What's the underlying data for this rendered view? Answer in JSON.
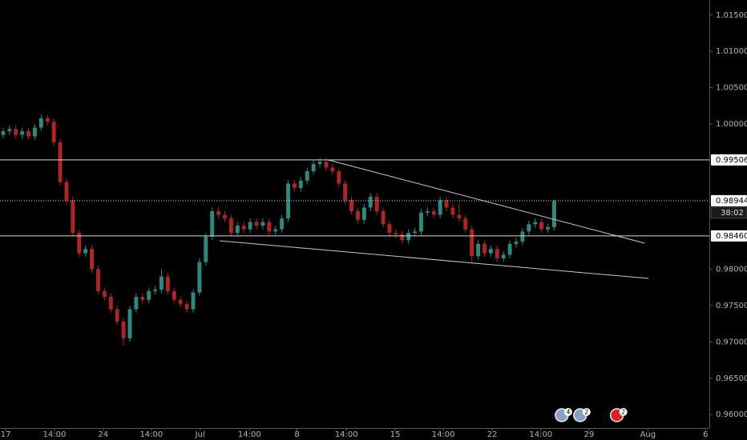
{
  "chart_data": {
    "type": "candlestick",
    "up_color": "#2a8c80",
    "down_color": "#b02424",
    "background": "#000000",
    "xlim": [
      -0.5,
      111.5
    ],
    "xticks": [
      {
        "value": 0.4,
        "label": "17"
      },
      {
        "value": 8.1,
        "label": "14:00"
      },
      {
        "value": 15.8,
        "label": "24"
      },
      {
        "value": 23.4,
        "label": "14:00"
      },
      {
        "value": 31.1,
        "label": "Jul"
      },
      {
        "value": 38.9,
        "label": "14:00"
      },
      {
        "value": 46.4,
        "label": "8"
      },
      {
        "value": 54.2,
        "label": "14:00"
      },
      {
        "value": 61.9,
        "label": "15"
      },
      {
        "value": 69.5,
        "label": "14:00"
      },
      {
        "value": 77.2,
        "label": "22"
      },
      {
        "value": 84.9,
        "label": "14:00"
      },
      {
        "value": 92.5,
        "label": "29"
      },
      {
        "value": 101.8,
        "label": "Aug"
      },
      {
        "value": 110.9,
        "label": "6"
      }
    ],
    "ylim": [
      0.95815,
      1.01707
    ],
    "yticks": [
      {
        "value": 1.015,
        "label": "1.01500"
      },
      {
        "value": 1.01,
        "label": "1.01000"
      },
      {
        "value": 1.005,
        "label": "1.00500"
      },
      {
        "value": 1.0,
        "label": "1.00000"
      },
      {
        "value": 0.98,
        "label": "0.98000"
      },
      {
        "value": 0.975,
        "label": "0.97500"
      },
      {
        "value": 0.97,
        "label": "0.97000"
      },
      {
        "value": 0.965,
        "label": "0.96500"
      },
      {
        "value": 0.96,
        "label": "0.96000"
      }
    ],
    "price_lines": [
      {
        "value": 0.99506,
        "label": "0.99506",
        "style": "solid"
      },
      {
        "value": 0.9846,
        "label": "0.98460",
        "style": "solid"
      },
      {
        "value": 0.98944,
        "label": "0.98944",
        "style": "dotted"
      }
    ],
    "countdown": "38:02",
    "trendlines": [
      [
        [
          51.3,
          0.99506
        ],
        [
          101.3,
          0.98359
        ]
      ],
      [
        [
          34.2,
          0.98392
        ],
        [
          101.9,
          0.97874
        ]
      ]
    ],
    "events": [
      {
        "x": 88.2,
        "label": "4"
      },
      {
        "x": 91.1,
        "label": "2"
      },
      {
        "x": 96.9,
        "label": "2"
      }
    ],
    "candles": [
      [
        0.9985,
        0.9995,
        0.998,
        0.999
      ],
      [
        0.999,
        0.9998,
        0.9985,
        0.9993
      ],
      [
        0.9993,
        0.9998,
        0.998,
        0.9985
      ],
      [
        0.9985,
        0.9995,
        0.998,
        0.999
      ],
      [
        0.999,
        0.9995,
        0.9978,
        0.9983
      ],
      [
        0.9983,
        1.0,
        0.9978,
        0.9995
      ],
      [
        0.9995,
        1.0013,
        0.999,
        1.0008
      ],
      [
        1.0008,
        1.0013,
        0.9998,
        1.0003
      ],
      [
        1.0003,
        1.0008,
        0.997,
        0.9975
      ],
      [
        0.9975,
        0.998,
        0.9915,
        0.992
      ],
      [
        0.992,
        0.9925,
        0.989,
        0.9895
      ],
      [
        0.9895,
        0.99,
        0.9845,
        0.985
      ],
      [
        0.985,
        0.9855,
        0.9817,
        0.9822
      ],
      [
        0.9822,
        0.9833,
        0.9817,
        0.9828
      ],
      [
        0.9828,
        0.9833,
        0.9795,
        0.98
      ],
      [
        0.98,
        0.9805,
        0.9765,
        0.977
      ],
      [
        0.977,
        0.9775,
        0.9757,
        0.9762
      ],
      [
        0.9762,
        0.9767,
        0.974,
        0.9745
      ],
      [
        0.9745,
        0.975,
        0.9723,
        0.9728
      ],
      [
        0.9728,
        0.9733,
        0.9695,
        0.9705
      ],
      [
        0.9705,
        0.975,
        0.97,
        0.9745
      ],
      [
        0.9745,
        0.9767,
        0.974,
        0.9762
      ],
      [
        0.9762,
        0.9767,
        0.9753,
        0.9758
      ],
      [
        0.9758,
        0.9775,
        0.9753,
        0.977
      ],
      [
        0.977,
        0.9777,
        0.9765,
        0.9772
      ],
      [
        0.9772,
        0.98,
        0.9767,
        0.979
      ],
      [
        0.979,
        0.9795,
        0.9765,
        0.977
      ],
      [
        0.977,
        0.9775,
        0.9753,
        0.9758
      ],
      [
        0.9758,
        0.9763,
        0.9747,
        0.9752
      ],
      [
        0.9752,
        0.9757,
        0.974,
        0.9745
      ],
      [
        0.9745,
        0.9773,
        0.974,
        0.9768
      ],
      [
        0.9768,
        0.9815,
        0.9763,
        0.981
      ],
      [
        0.981,
        0.985,
        0.9805,
        0.9845
      ],
      [
        0.9845,
        0.9885,
        0.984,
        0.988
      ],
      [
        0.988,
        0.9885,
        0.987,
        0.9875
      ],
      [
        0.9875,
        0.988,
        0.9865,
        0.987
      ],
      [
        0.987,
        0.9875,
        0.9845,
        0.985
      ],
      [
        0.985,
        0.9865,
        0.9845,
        0.986
      ],
      [
        0.986,
        0.9865,
        0.985,
        0.9855
      ],
      [
        0.9855,
        0.987,
        0.985,
        0.9865
      ],
      [
        0.9865,
        0.987,
        0.9855,
        0.986
      ],
      [
        0.986,
        0.987,
        0.9855,
        0.9865
      ],
      [
        0.9865,
        0.987,
        0.9847,
        0.9852
      ],
      [
        0.9852,
        0.986,
        0.9847,
        0.9855
      ],
      [
        0.9855,
        0.9875,
        0.985,
        0.987
      ],
      [
        0.987,
        0.9923,
        0.9865,
        0.9918
      ],
      [
        0.9918,
        0.9923,
        0.9907,
        0.9912
      ],
      [
        0.9912,
        0.9927,
        0.9907,
        0.9922
      ],
      [
        0.9922,
        0.994,
        0.9917,
        0.9935
      ],
      [
        0.9935,
        0.995,
        0.993,
        0.9945
      ],
      [
        0.9945,
        0.9953,
        0.994,
        0.9948
      ],
      [
        0.9948,
        0.9953,
        0.9935,
        0.994
      ],
      [
        0.994,
        0.9945,
        0.993,
        0.9935
      ],
      [
        0.9935,
        0.994,
        0.9913,
        0.9918
      ],
      [
        0.9918,
        0.9923,
        0.989,
        0.9895
      ],
      [
        0.9895,
        0.99,
        0.9875,
        0.988
      ],
      [
        0.988,
        0.9885,
        0.9863,
        0.9868
      ],
      [
        0.9868,
        0.989,
        0.9863,
        0.9885
      ],
      [
        0.9885,
        0.9905,
        0.988,
        0.99
      ],
      [
        0.99,
        0.9905,
        0.9875,
        0.988
      ],
      [
        0.988,
        0.9885,
        0.9857,
        0.9862
      ],
      [
        0.9862,
        0.9867,
        0.9845,
        0.985
      ],
      [
        0.985,
        0.9855,
        0.9843,
        0.9848
      ],
      [
        0.9848,
        0.9853,
        0.9835,
        0.984
      ],
      [
        0.984,
        0.9855,
        0.9835,
        0.985
      ],
      [
        0.985,
        0.9857,
        0.9845,
        0.9852
      ],
      [
        0.9852,
        0.9883,
        0.9847,
        0.9878
      ],
      [
        0.9878,
        0.9885,
        0.9873,
        0.988
      ],
      [
        0.988,
        0.9885,
        0.987,
        0.9875
      ],
      [
        0.9875,
        0.99,
        0.987,
        0.9895
      ],
      [
        0.9895,
        0.99,
        0.988,
        0.9885
      ],
      [
        0.9885,
        0.989,
        0.987,
        0.9875
      ],
      [
        0.9875,
        0.989,
        0.9865,
        0.987
      ],
      [
        0.987,
        0.9875,
        0.985,
        0.9855
      ],
      [
        0.9855,
        0.986,
        0.981,
        0.9818
      ],
      [
        0.9818,
        0.984,
        0.9813,
        0.9835
      ],
      [
        0.9835,
        0.984,
        0.9817,
        0.9822
      ],
      [
        0.9822,
        0.9833,
        0.9817,
        0.9828
      ],
      [
        0.9828,
        0.9833,
        0.981,
        0.9815
      ],
      [
        0.9815,
        0.9825,
        0.981,
        0.982
      ],
      [
        0.982,
        0.984,
        0.9815,
        0.9835
      ],
      [
        0.9835,
        0.9843,
        0.983,
        0.9838
      ],
      [
        0.9838,
        0.9857,
        0.9833,
        0.9852
      ],
      [
        0.9852,
        0.9867,
        0.9847,
        0.9862
      ],
      [
        0.9862,
        0.987,
        0.9857,
        0.9865
      ],
      [
        0.9865,
        0.987,
        0.985,
        0.9855
      ],
      [
        0.9855,
        0.9863,
        0.985,
        0.9858
      ],
      [
        0.9858,
        0.9896,
        0.9853,
        0.9894
      ]
    ]
  }
}
